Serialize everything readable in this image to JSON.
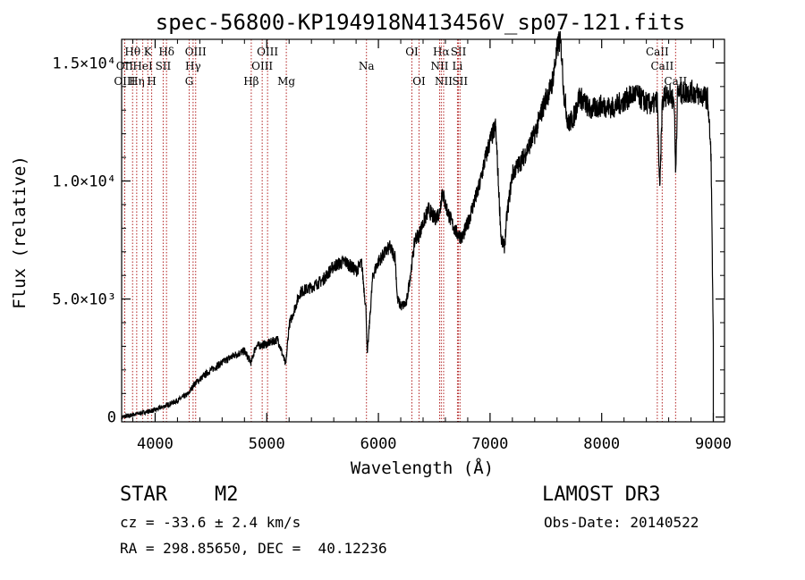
{
  "chart_data": {
    "type": "line",
    "title": "spec-56800-KP194918N413456V_sp07-121.fits",
    "xlabel": "Wavelength (Å)",
    "ylabel": "Flux (relative)",
    "xlim": [
      3700,
      9100
    ],
    "ylim": [
      -200,
      16000
    ],
    "x_ticks": [
      4000,
      5000,
      6000,
      7000,
      8000,
      9000
    ],
    "y_ticks": [
      {
        "value": 0,
        "label": "0"
      },
      {
        "value": 5000,
        "label": "5.0×10³"
      },
      {
        "value": 10000,
        "label": "1.0×10⁴"
      },
      {
        "value": 15000,
        "label": "1.5×10⁴"
      }
    ],
    "line_color": "#000000",
    "marker_color": "#b22222",
    "spectrum": {
      "wavelength": [
        3700,
        3800,
        3900,
        4000,
        4100,
        4200,
        4300,
        4350,
        4400,
        4500,
        4600,
        4700,
        4800,
        4860,
        4900,
        5000,
        5100,
        5170,
        5200,
        5300,
        5400,
        5500,
        5600,
        5700,
        5800,
        5850,
        5890,
        5900,
        5950,
        6000,
        6100,
        6150,
        6170,
        6200,
        6250,
        6300,
        6330,
        6360,
        6400,
        6450,
        6500,
        6550,
        6570,
        6600,
        6650,
        6700,
        6750,
        6800,
        6850,
        6900,
        6950,
        7000,
        7050,
        7100,
        7130,
        7150,
        7200,
        7300,
        7400,
        7500,
        7550,
        7600,
        7620,
        7640,
        7660,
        7700,
        7750,
        7800,
        7900,
        8000,
        8100,
        8200,
        8300,
        8400,
        8450,
        8498,
        8520,
        8542,
        8560,
        8600,
        8650,
        8662,
        8680,
        8700,
        8800,
        8900,
        8950,
        8980,
        9000
      ],
      "flux": [
        0,
        100,
        200,
        300,
        500,
        700,
        1000,
        1400,
        1600,
        2000,
        2300,
        2600,
        2800,
        2300,
        3000,
        3100,
        3300,
        2200,
        3900,
        5300,
        5500,
        5800,
        6400,
        6600,
        6200,
        6500,
        4500,
        2600,
        6000,
        6600,
        7200,
        6800,
        5000,
        4700,
        4800,
        6500,
        7600,
        7700,
        8200,
        8800,
        8400,
        8700,
        9600,
        9000,
        8300,
        7800,
        7600,
        8200,
        9000,
        9700,
        10800,
        11700,
        12300,
        7500,
        7200,
        8500,
        10300,
        11000,
        12000,
        13500,
        14000,
        15500,
        16000,
        15500,
        13800,
        12400,
        12700,
        13600,
        13000,
        13200,
        13100,
        13400,
        13700,
        13300,
        13200,
        13400,
        9500,
        13200,
        13600,
        13700,
        13400,
        10300,
        13800,
        13700,
        13800,
        13600,
        13500,
        11000,
        3000
      ]
    },
    "lines": [
      {
        "label": "Hθ",
        "wavelength": 3798,
        "row": 1
      },
      {
        "label": "OII",
        "wavelength": 3727,
        "row": 2
      },
      {
        "label": "OIII",
        "wavelength": 3727,
        "row": 3
      },
      {
        "label": "Hη",
        "wavelength": 3835,
        "row": 3
      },
      {
        "label": "HeI",
        "wavelength": 3889,
        "row": 2
      },
      {
        "label": "K",
        "wavelength": 3934,
        "row": 1
      },
      {
        "label": "H",
        "wavelength": 3969,
        "row": 3
      },
      {
        "label": "SII",
        "wavelength": 4072,
        "row": 2
      },
      {
        "label": "Hδ",
        "wavelength": 4102,
        "row": 1
      },
      {
        "label": "OIII",
        "wavelength": 4363,
        "row": 1
      },
      {
        "label": "Hγ",
        "wavelength": 4340,
        "row": 2
      },
      {
        "label": "G",
        "wavelength": 4305,
        "row": 3
      },
      {
        "label": "OIII",
        "wavelength": 5007,
        "row": 1
      },
      {
        "label": "OIII",
        "wavelength": 4959,
        "row": 2
      },
      {
        "label": "Hβ",
        "wavelength": 4861,
        "row": 3
      },
      {
        "label": "Mg",
        "wavelength": 5175,
        "row": 3
      },
      {
        "label": "Na",
        "wavelength": 5893,
        "row": 2
      },
      {
        "label": "OI",
        "wavelength": 6300,
        "row": 1
      },
      {
        "label": "OI",
        "wavelength": 6364,
        "row": 3
      },
      {
        "label": "Hα",
        "wavelength": 6563,
        "row": 1
      },
      {
        "label": "NII",
        "wavelength": 6548,
        "row": 2
      },
      {
        "label": "NII",
        "wavelength": 6584,
        "row": 3
      },
      {
        "label": "SII",
        "wavelength": 6717,
        "row": 1
      },
      {
        "label": "Li",
        "wavelength": 6708,
        "row": 2
      },
      {
        "label": "SII",
        "wavelength": 6731,
        "row": 3
      },
      {
        "label": "CaII",
        "wavelength": 8498,
        "row": 1
      },
      {
        "label": "CaII",
        "wavelength": 8542,
        "row": 2
      },
      {
        "label": "CaII",
        "wavelength": 8662,
        "row": 3
      }
    ]
  },
  "footer": {
    "object_class": "STAR",
    "subclass": "M2",
    "survey": "LAMOST DR3",
    "cz": "cz = -33.6 ± 2.4 km/s",
    "obs_date": "Obs-Date: 20140522",
    "coords": "RA = 298.85650, DEC =  40.12236"
  }
}
